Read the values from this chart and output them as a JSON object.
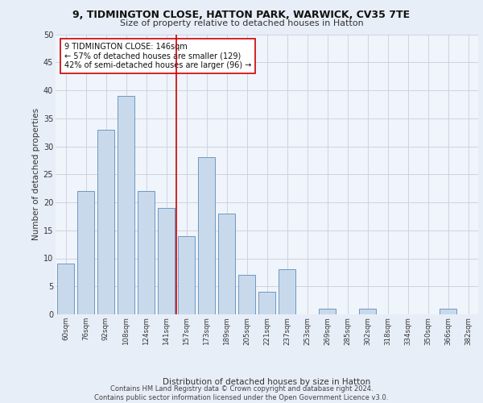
{
  "title1": "9, TIDMINGTON CLOSE, HATTON PARK, WARWICK, CV35 7TE",
  "title2": "Size of property relative to detached houses in Hatton",
  "xlabel": "Distribution of detached houses by size in Hatton",
  "ylabel": "Number of detached properties",
  "categories": [
    "60sqm",
    "76sqm",
    "92sqm",
    "108sqm",
    "124sqm",
    "141sqm",
    "157sqm",
    "173sqm",
    "189sqm",
    "205sqm",
    "221sqm",
    "237sqm",
    "253sqm",
    "269sqm",
    "285sqm",
    "302sqm",
    "318sqm",
    "334sqm",
    "350sqm",
    "366sqm",
    "382sqm"
  ],
  "values": [
    9,
    22,
    33,
    39,
    22,
    19,
    14,
    28,
    18,
    7,
    4,
    8,
    0,
    1,
    0,
    1,
    0,
    0,
    0,
    1,
    0
  ],
  "bar_color": "#c9d9ec",
  "bar_edge_color": "#5b8db8",
  "vline_x": 5.5,
  "vline_color": "#cc0000",
  "annotation_text": "9 TIDMINGTON CLOSE: 146sqm\n← 57% of detached houses are smaller (129)\n42% of semi-detached houses are larger (96) →",
  "annotation_box_color": "#ffffff",
  "annotation_box_edge": "#cc0000",
  "ylim": [
    0,
    50
  ],
  "yticks": [
    0,
    5,
    10,
    15,
    20,
    25,
    30,
    35,
    40,
    45,
    50
  ],
  "footer": "Contains HM Land Registry data © Crown copyright and database right 2024.\nContains public sector information licensed under the Open Government Licence v3.0.",
  "bg_color": "#e8eef7",
  "plot_bg_color": "#f0f4fb",
  "grid_color": "#c8d0de"
}
